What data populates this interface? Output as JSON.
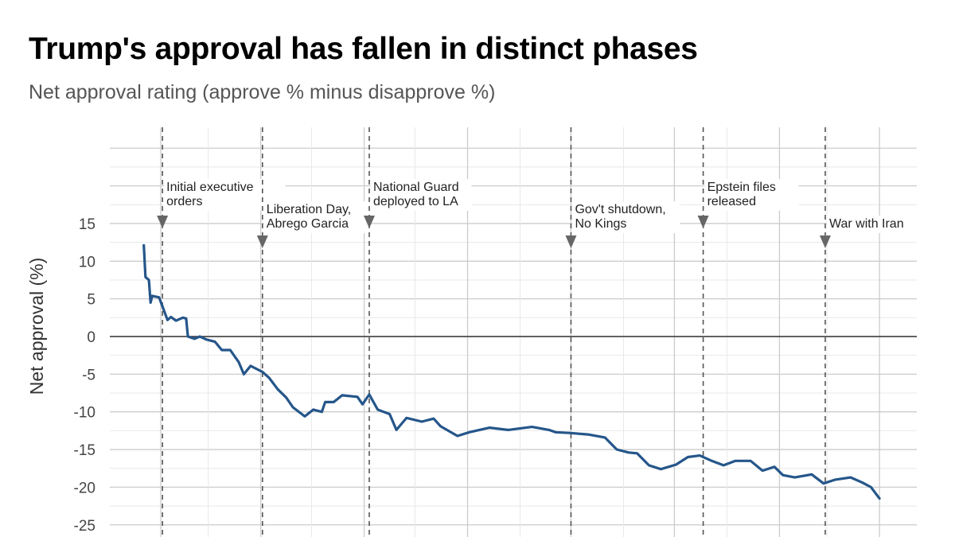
{
  "chart_data": {
    "type": "line",
    "title": "Trump's approval has fallen in distinct phases",
    "subtitle": "Net approval rating (approve % minus disapprove %)",
    "xlabel": "",
    "ylabel": "Net approval (%)",
    "ylim": [
      -25,
      15
    ],
    "yticks": [
      -25,
      -20,
      -15,
      -10,
      -5,
      0,
      5,
      10,
      15
    ],
    "xlim": [
      "2025-01-02",
      "2026-04-23"
    ],
    "grid": true,
    "legend": "none",
    "colors": {
      "line": "#25568a",
      "zero_line": "#333333",
      "event_line": "#555555",
      "grid_major": "#cccccc",
      "grid_minor": "#e8e8e8"
    },
    "series": [
      {
        "points": [
          [
            "2025-01-22",
            12.1
          ],
          [
            "2025-01-23",
            7.9
          ],
          [
            "2025-01-25",
            7.5
          ],
          [
            "2025-01-26",
            4.5
          ],
          [
            "2025-01-27",
            5.4
          ],
          [
            "2025-01-31",
            5.2
          ],
          [
            "2025-02-02",
            4.0
          ],
          [
            "2025-02-05",
            2.2
          ],
          [
            "2025-02-07",
            2.6
          ],
          [
            "2025-02-10",
            2.1
          ],
          [
            "2025-02-14",
            2.5
          ],
          [
            "2025-02-16",
            2.4
          ],
          [
            "2025-02-17",
            0.0
          ],
          [
            "2025-02-21",
            -0.3
          ],
          [
            "2025-02-24",
            0.0
          ],
          [
            "2025-02-28",
            -0.4
          ],
          [
            "2025-03-05",
            -0.7
          ],
          [
            "2025-03-09",
            -1.8
          ],
          [
            "2025-03-14",
            -1.8
          ],
          [
            "2025-03-19",
            -3.4
          ],
          [
            "2025-03-22",
            -5.0
          ],
          [
            "2025-03-26",
            -3.9
          ],
          [
            "2025-04-02",
            -4.7
          ],
          [
            "2025-04-06",
            -5.5
          ],
          [
            "2025-04-11",
            -7.0
          ],
          [
            "2025-04-16",
            -8.1
          ],
          [
            "2025-04-20",
            -9.4
          ],
          [
            "2025-04-27",
            -10.6
          ],
          [
            "2025-05-02",
            -9.7
          ],
          [
            "2025-05-07",
            -10.0
          ],
          [
            "2025-05-09",
            -8.7
          ],
          [
            "2025-05-14",
            -8.7
          ],
          [
            "2025-05-19",
            -7.8
          ],
          [
            "2025-05-28",
            -8.0
          ],
          [
            "2025-05-31",
            -9.0
          ],
          [
            "2025-06-04",
            -7.7
          ],
          [
            "2025-06-09",
            -9.7
          ],
          [
            "2025-06-16",
            -10.3
          ],
          [
            "2025-06-20",
            -12.4
          ],
          [
            "2025-06-26",
            -10.8
          ],
          [
            "2025-07-05",
            -11.3
          ],
          [
            "2025-07-12",
            -10.9
          ],
          [
            "2025-07-16",
            -11.9
          ],
          [
            "2025-07-26",
            -13.2
          ],
          [
            "2025-08-02",
            -12.7
          ],
          [
            "2025-08-14",
            -12.1
          ],
          [
            "2025-08-25",
            -12.4
          ],
          [
            "2025-09-08",
            -12.0
          ],
          [
            "2025-09-18",
            -12.4
          ],
          [
            "2025-09-22",
            -12.7
          ],
          [
            "2025-09-30",
            -12.8
          ],
          [
            "2025-10-11",
            -13.0
          ],
          [
            "2025-10-21",
            -13.4
          ],
          [
            "2025-10-28",
            -15.0
          ],
          [
            "2025-11-04",
            -15.4
          ],
          [
            "2025-11-09",
            -15.5
          ],
          [
            "2025-11-16",
            -17.1
          ],
          [
            "2025-11-23",
            -17.6
          ],
          [
            "2025-12-02",
            -17.0
          ],
          [
            "2025-12-09",
            -16.0
          ],
          [
            "2025-12-16",
            -15.8
          ],
          [
            "2025-12-23",
            -16.5
          ],
          [
            "2025-12-30",
            -17.1
          ],
          [
            "2026-01-06",
            -16.5
          ],
          [
            "2026-01-15",
            -16.5
          ],
          [
            "2026-01-22",
            -17.8
          ],
          [
            "2026-01-29",
            -17.3
          ],
          [
            "2026-02-03",
            -18.4
          ],
          [
            "2026-02-10",
            -18.7
          ],
          [
            "2026-02-20",
            -18.3
          ],
          [
            "2026-02-27",
            -19.5
          ],
          [
            "2026-03-06",
            -19.0
          ],
          [
            "2026-03-15",
            -18.7
          ],
          [
            "2026-03-22",
            -19.4
          ],
          [
            "2026-03-27",
            -20.0
          ],
          [
            "2026-04-01",
            -21.5
          ]
        ]
      }
    ],
    "annotations": [
      {
        "date": "2025-02-02",
        "lines": [
          "Initial executive",
          "orders"
        ],
        "tier": 0
      },
      {
        "date": "2025-04-02",
        "lines": [
          "Liberation Day,",
          "Abrego Garcia"
        ],
        "tier": 1
      },
      {
        "date": "2025-06-04",
        "lines": [
          "National Guard",
          "deployed to LA"
        ],
        "tier": 0
      },
      {
        "date": "2025-10-01",
        "lines": [
          "Gov't shutdown,",
          "No Kings"
        ],
        "tier": 1
      },
      {
        "date": "2025-12-18",
        "lines": [
          "Epstein files",
          "released"
        ],
        "tier": 0
      },
      {
        "date": "2026-02-28",
        "lines": [
          "War with Iran"
        ],
        "tier": 2
      }
    ]
  }
}
